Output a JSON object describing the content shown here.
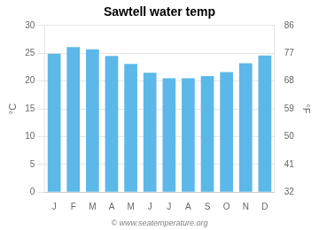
{
  "chart_data": {
    "type": "bar",
    "title": "Sawtell water temp",
    "categories": [
      "J",
      "F",
      "M",
      "A",
      "M",
      "J",
      "J",
      "A",
      "S",
      "O",
      "N",
      "D"
    ],
    "values": [
      24.9,
      26.1,
      25.7,
      24.5,
      23.1,
      21.5,
      20.5,
      20.5,
      20.9,
      21.6,
      23.2,
      24.6
    ],
    "color": "#5bb8e8",
    "ylabel": "°C",
    "ylim": [
      0,
      30
    ],
    "yticks": [
      0,
      5,
      10,
      15,
      20,
      25,
      30
    ],
    "y2label": "°F",
    "y2lim": [
      32,
      86
    ],
    "y2ticks": [
      32,
      41,
      50,
      59,
      68,
      77,
      86
    ],
    "grid": true,
    "annotations": [
      "© www.seatemperature.org"
    ]
  }
}
